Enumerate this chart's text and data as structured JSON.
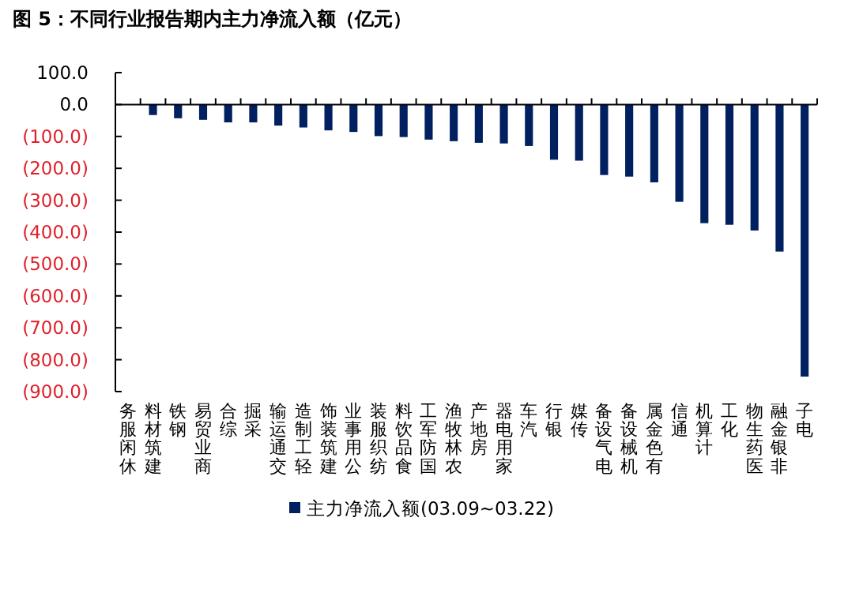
{
  "chart_data": {
    "type": "bar",
    "title": "图 5：不同行业报告期内主力净流入额（亿元）",
    "categories": [
      "休闲服务",
      "建筑材料",
      "钢铁",
      "商业贸易",
      "综合",
      "采掘",
      "交通运输",
      "轻工制造",
      "建筑装饰",
      "公用事业",
      "纺织服装",
      "食品饮料",
      "国防军工",
      "农林牧渔",
      "房地产",
      "家用电器",
      "汽车",
      "银行",
      "传媒",
      "电气设备",
      "机械设备",
      "有色金属",
      "通信",
      "计算机",
      "化工",
      "医药生物",
      "非银金融",
      "电子"
    ],
    "series": [
      {
        "name": "主力净流入额(03.09~03.22)",
        "color": "#002060",
        "values": [
          0,
          -33,
          -43,
          -48,
          -56,
          -56,
          -66,
          -72,
          -81,
          -86,
          -99,
          -102,
          -110,
          -115,
          -120,
          -122,
          -130,
          -173,
          -176,
          -221,
          -226,
          -244,
          -305,
          -372,
          -377,
          -395,
          -461,
          -853
        ]
      }
    ],
    "ylim": [
      -900,
      100
    ],
    "yticks": [
      {
        "value": 100,
        "label": "100.0"
      },
      {
        "value": 0,
        "label": "0.0"
      },
      {
        "value": -100,
        "label": "(100.0)"
      },
      {
        "value": -200,
        "label": "(200.0)"
      },
      {
        "value": -300,
        "label": "(300.0)"
      },
      {
        "value": -400,
        "label": "(400.0)"
      },
      {
        "value": -500,
        "label": "(500.0)"
      },
      {
        "value": -600,
        "label": "(600.0)"
      },
      {
        "value": -700,
        "label": "(700.0)"
      },
      {
        "value": -800,
        "label": "(800.0)"
      },
      {
        "value": -900,
        "label": "(900.0)"
      }
    ],
    "legend": "bottom"
  }
}
